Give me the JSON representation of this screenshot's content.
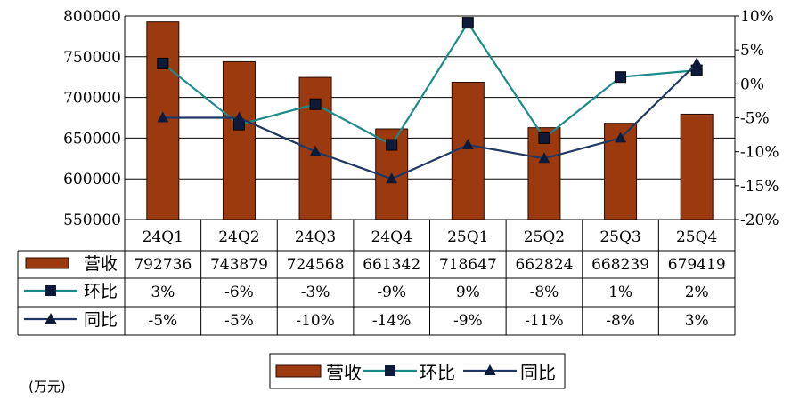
{
  "chart_data": {
    "type": "bar",
    "categories": [
      "24Q1",
      "24Q2",
      "24Q3",
      "24Q4",
      "25Q1",
      "25Q2",
      "25Q3",
      "25Q4"
    ],
    "series": [
      {
        "name": "营收",
        "type": "bar",
        "axis": "left",
        "color": "#9b3a0e",
        "values": [
          792736,
          743879,
          724568,
          661342,
          718647,
          662824,
          668239,
          679419
        ],
        "labels": [
          "792736",
          "743879",
          "724568",
          "661342",
          "718647",
          "662824",
          "668239",
          "679419"
        ]
      },
      {
        "name": "环比",
        "type": "line",
        "axis": "right",
        "marker": "square",
        "color": "#1a8a8a",
        "values": [
          3,
          -6,
          -3,
          -9,
          9,
          -8,
          1,
          2
        ],
        "labels": [
          "3%",
          "-6%",
          "-3%",
          "-9%",
          "9%",
          "-8%",
          "1%",
          "2%"
        ]
      },
      {
        "name": "同比",
        "type": "line",
        "axis": "right",
        "marker": "triangle",
        "color": "#1f3864",
        "values": [
          -5,
          -5,
          -10,
          -14,
          -9,
          -11,
          -8,
          3
        ],
        "labels": [
          "-5%",
          "-5%",
          "-10%",
          "-14%",
          "-9%",
          "-11%",
          "-8%",
          "3%"
        ]
      }
    ],
    "y_left": {
      "ylim": [
        550000,
        800000
      ],
      "ticks": [
        "550000",
        "600000",
        "650000",
        "700000",
        "750000",
        "800000"
      ]
    },
    "y_right": {
      "ylim": [
        -20,
        10
      ],
      "ticks": [
        "-20%",
        "-15%",
        "-10%",
        "-5%",
        "0%",
        "5%",
        "10%"
      ]
    },
    "legend": {
      "placement": "bottom-center",
      "labels": [
        "营收",
        "环比",
        "同比"
      ]
    },
    "unit_note": "(万元)",
    "grid": true
  }
}
